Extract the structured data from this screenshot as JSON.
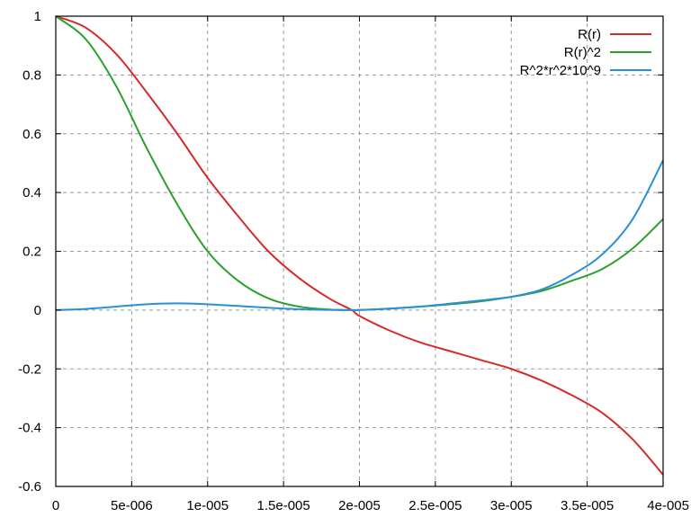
{
  "chart_data": {
    "type": "line",
    "title": "",
    "xlabel": "",
    "ylabel": "",
    "xlim": [
      0,
      4e-05
    ],
    "ylim": [
      -0.6,
      1
    ],
    "grid": true,
    "legend_position": "top-right",
    "x_ticks": [
      {
        "value": 0,
        "label": "0"
      },
      {
        "value": 5e-06,
        "label": "5e-006"
      },
      {
        "value": 1e-05,
        "label": "1e-005"
      },
      {
        "value": 1.5e-05,
        "label": "1.5e-005"
      },
      {
        "value": 2e-05,
        "label": "2e-005"
      },
      {
        "value": 2.5e-05,
        "label": "2.5e-005"
      },
      {
        "value": 3e-05,
        "label": "3e-005"
      },
      {
        "value": 3.5e-05,
        "label": "3.5e-005"
      },
      {
        "value": 4e-05,
        "label": "4e-005"
      }
    ],
    "y_ticks": [
      {
        "value": 1,
        "label": "1"
      },
      {
        "value": 0.8,
        "label": "0.8"
      },
      {
        "value": 0.6,
        "label": "0.6"
      },
      {
        "value": 0.4,
        "label": "0.4"
      },
      {
        "value": 0.2,
        "label": "0.2"
      },
      {
        "value": 0,
        "label": "0"
      },
      {
        "value": -0.2,
        "label": "-0.2"
      },
      {
        "value": -0.4,
        "label": "-0.4"
      },
      {
        "value": -0.6,
        "label": "-0.6"
      }
    ],
    "series": [
      {
        "name": "R(r)",
        "color": "#d62a2a",
        "x": [
          0,
          2e-06,
          4e-06,
          6e-06,
          8e-06,
          1e-05,
          1.2e-05,
          1.4e-05,
          1.6e-05,
          1.8e-05,
          1.95e-05,
          2e-05,
          2.2e-05,
          2.4e-05,
          2.6e-05,
          2.8e-05,
          3e-05,
          3.2e-05,
          3.4e-05,
          3.6e-05,
          3.8e-05,
          4e-05
        ],
        "y": [
          1,
          0.96,
          0.87,
          0.74,
          0.6,
          0.45,
          0.32,
          0.2,
          0.11,
          0.04,
          0,
          -0.02,
          -0.07,
          -0.11,
          -0.14,
          -0.17,
          -0.2,
          -0.24,
          -0.29,
          -0.35,
          -0.44,
          -0.56
        ]
      },
      {
        "name": "R(r)^2",
        "color": "#2aa02a",
        "x": [
          0,
          2e-06,
          4e-06,
          6e-06,
          8e-06,
          1e-05,
          1.2e-05,
          1.4e-05,
          1.6e-05,
          1.8e-05,
          1.95e-05,
          2e-05,
          2.2e-05,
          2.4e-05,
          2.6e-05,
          2.8e-05,
          3e-05,
          3.2e-05,
          3.4e-05,
          3.6e-05,
          3.8e-05,
          4e-05
        ],
        "y": [
          1,
          0.92,
          0.76,
          0.55,
          0.36,
          0.2,
          0.1,
          0.04,
          0.012,
          0.002,
          0,
          0.0004,
          0.005,
          0.012,
          0.02,
          0.03,
          0.045,
          0.065,
          0.1,
          0.14,
          0.21,
          0.31
        ]
      },
      {
        "name": "R^2*r^2*10^9",
        "color": "#2a8fd6",
        "x": [
          0,
          2e-06,
          4e-06,
          6e-06,
          8e-06,
          1e-05,
          1.2e-05,
          1.4e-05,
          1.6e-05,
          1.8e-05,
          1.95e-05,
          2e-05,
          2.2e-05,
          2.4e-05,
          2.6e-05,
          2.8e-05,
          3e-05,
          3.2e-05,
          3.4e-05,
          3.6e-05,
          3.8e-05,
          4e-05
        ],
        "y": [
          0,
          0.004,
          0.012,
          0.02,
          0.023,
          0.02,
          0.014,
          0.008,
          0.003,
          0.0006,
          0,
          0.0002,
          0.005,
          0.012,
          0.022,
          0.033,
          0.045,
          0.07,
          0.12,
          0.19,
          0.31,
          0.51
        ]
      }
    ]
  }
}
